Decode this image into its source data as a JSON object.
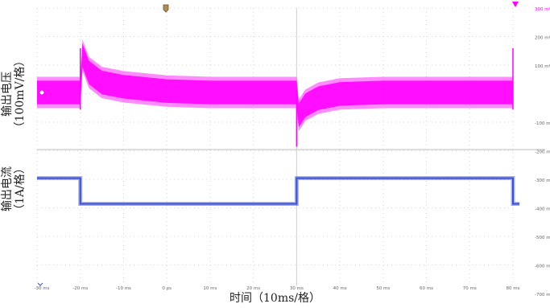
{
  "labels": {
    "voltage_line1": "输出电压",
    "voltage_line2": "（100mV/格）",
    "current_line1": "输出电流",
    "current_line2": "（1A/格）",
    "x_axis": "时间（10ms/格）"
  },
  "chart_data": {
    "type": "line",
    "xlabel": "时间（10ms/格）",
    "xlim": [
      -30,
      80
    ],
    "x_ticks": [
      "-30 ms",
      "-20 ms",
      "-10 ms",
      "0 ps",
      "10 ms",
      "20 ms",
      "30 ms",
      "40 ms",
      "50 ms",
      "60 ms",
      "70 ms",
      "80 ms"
    ],
    "right_ticks": [
      "300 mV",
      "200 mV",
      "100 mV",
      "",
      "-100 mV",
      "-200 mV",
      "-300 mV",
      "-400 mV",
      "-500 mV",
      "-600 mV",
      "-700 mV"
    ],
    "colors": {
      "voltage": "#ff00ff",
      "current": "#3a4fd6",
      "grid": "#d8d8d8"
    },
    "series": [
      {
        "name": "输出电压",
        "unit_per_div": "100mV/格",
        "x": [
          -30,
          -20,
          -19.5,
          -18,
          -15,
          -10,
          0,
          10,
          20,
          30,
          30.5,
          32,
          35,
          40,
          50,
          60,
          70,
          80,
          80.5,
          82
        ],
        "center": [
          0,
          0,
          1.3,
          0.7,
          0.35,
          0.2,
          0.05,
          0,
          0,
          0,
          -0.8,
          -0.45,
          -0.2,
          -0.05,
          0,
          0,
          0,
          0,
          1.3,
          0.8
        ],
        "band_half_width_div": 0.55
      },
      {
        "name": "输出电流",
        "unit_per_div": "1A/格",
        "x": [
          -30,
          -20,
          -20,
          30,
          30,
          80,
          80,
          82
        ],
        "level_div": [
          -3.0,
          -3.0,
          -3.9,
          -3.9,
          -3.0,
          -3.0,
          -3.9,
          -3.9
        ]
      }
    ]
  }
}
